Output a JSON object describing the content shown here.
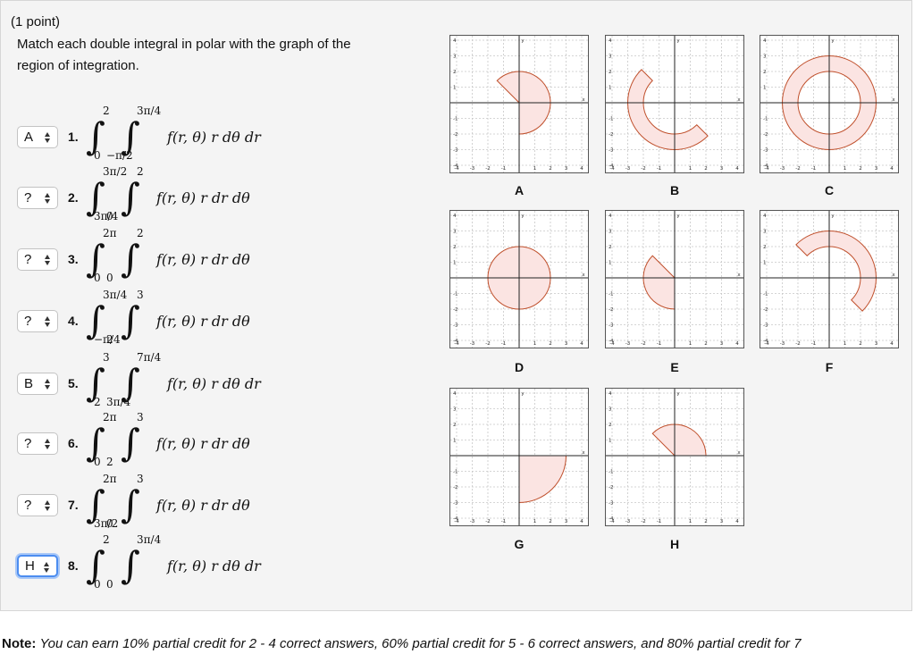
{
  "problem": {
    "points": "(1 point)",
    "instruction_line1": "Match each double integral in polar with the graph of the",
    "instruction_line2": "region of integration."
  },
  "items": [
    {
      "num": "1.",
      "answer": "A",
      "outer_upper": "2",
      "outer_lower": "0",
      "inner_upper": "3π/4",
      "inner_lower": "−π/2",
      "integrand": "f(r, θ) r dθ dr"
    },
    {
      "num": "2.",
      "answer": "?",
      "outer_upper": "3π/2",
      "outer_lower": "3π/4",
      "inner_upper": "2",
      "inner_lower": "0",
      "integrand": "f(r, θ) r dr dθ"
    },
    {
      "num": "3.",
      "answer": "?",
      "outer_upper": "2π",
      "outer_lower": "0",
      "inner_upper": "2",
      "inner_lower": "0",
      "integrand": "f(r, θ) r dr dθ"
    },
    {
      "num": "4.",
      "answer": "?",
      "outer_upper": "3π/4",
      "outer_lower": "−π/4",
      "inner_upper": "3",
      "inner_lower": "2",
      "integrand": "f(r, θ) r dr dθ"
    },
    {
      "num": "5.",
      "answer": "B",
      "outer_upper": "3",
      "outer_lower": "2",
      "inner_upper": "7π/4",
      "inner_lower": "3π/4",
      "integrand": "f(r, θ) r dθ dr"
    },
    {
      "num": "6.",
      "answer": "?",
      "outer_upper": "2π",
      "outer_lower": "0",
      "inner_upper": "3",
      "inner_lower": "2",
      "integrand": "f(r, θ) r dr dθ"
    },
    {
      "num": "7.",
      "answer": "?",
      "outer_upper": "2π",
      "outer_lower": "3π/2",
      "inner_upper": "3",
      "inner_lower": "0",
      "integrand": "f(r, θ) r dr dθ"
    },
    {
      "num": "8.",
      "answer": "H",
      "outer_upper": "2",
      "outer_lower": "0",
      "inner_upper": "3π/4",
      "inner_lower": "0",
      "integrand": "f(r, θ) r dθ dr"
    }
  ],
  "graph_axes": {
    "x_ticks": [
      "-4",
      "-3",
      "-2",
      "-1",
      "1",
      "2",
      "3",
      "4"
    ],
    "y_ticks": [
      "4",
      "3",
      "2",
      "1",
      "-1",
      "-2",
      "-3",
      "-4"
    ],
    "x_label": "x",
    "y_label": "y"
  },
  "graphs": [
    {
      "label": "A",
      "r_inner": 0,
      "r_outer": 2,
      "theta_start_deg": -90,
      "theta_end_deg": 135
    },
    {
      "label": "B",
      "r_inner": 2,
      "r_outer": 3,
      "theta_start_deg": 135,
      "theta_end_deg": 315
    },
    {
      "label": "C",
      "r_inner": 2,
      "r_outer": 3,
      "theta_start_deg": 0,
      "theta_end_deg": 360
    },
    {
      "label": "D",
      "r_inner": 0,
      "r_outer": 2,
      "theta_start_deg": 0,
      "theta_end_deg": 360
    },
    {
      "label": "E",
      "r_inner": 0,
      "r_outer": 2,
      "theta_start_deg": 135,
      "theta_end_deg": 270
    },
    {
      "label": "F",
      "r_inner": 2,
      "r_outer": 3,
      "theta_start_deg": -45,
      "theta_end_deg": 135
    },
    {
      "label": "G",
      "r_inner": 0,
      "r_outer": 3,
      "theta_start_deg": 270,
      "theta_end_deg": 360
    },
    {
      "label": "H",
      "r_inner": 0,
      "r_outer": 2,
      "theta_start_deg": 0,
      "theta_end_deg": 135
    }
  ],
  "colors": {
    "region_fill": "#fbe4e2",
    "region_stroke": "#c0502c",
    "focus": "#4c8df0"
  },
  "note": {
    "label": "Note:",
    "text": "You can earn 10% partial credit for 2 - 4 correct answers, 60% partial credit for 5 - 6 correct answers, and 80% partial credit for 7"
  }
}
